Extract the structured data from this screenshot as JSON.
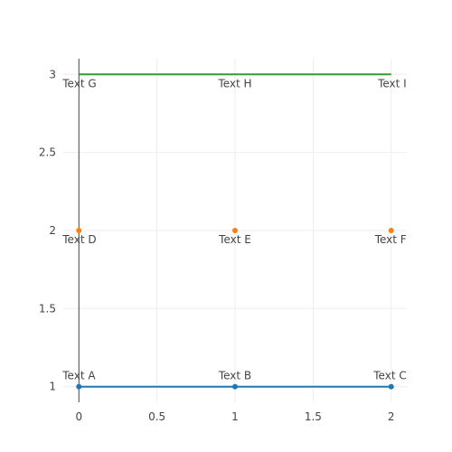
{
  "chart_data": {
    "type": "scatter",
    "xlim": [
      -0.1,
      2.1
    ],
    "ylim": [
      0.9,
      3.1
    ],
    "x_ticks": [
      0,
      0.5,
      1,
      1.5,
      2
    ],
    "y_ticks": [
      1,
      1.5,
      2,
      2.5,
      3
    ],
    "x_tick_labels": [
      "0",
      "0.5",
      "1",
      "1.5",
      "2"
    ],
    "y_tick_labels": [
      "1",
      "1.5",
      "2",
      "2.5",
      "3"
    ],
    "grid": true,
    "series": [
      {
        "mode": "lines+markers+text",
        "color": "#1f77b4",
        "text_position": "top",
        "x": [
          0,
          1,
          2
        ],
        "y": [
          1,
          1,
          1
        ],
        "labels": [
          "Text A",
          "Text B",
          "Text C"
        ]
      },
      {
        "mode": "markers+text",
        "color": "#ff7f0e",
        "text_position": "bottom",
        "x": [
          0,
          1,
          2
        ],
        "y": [
          2,
          2,
          2
        ],
        "labels": [
          "Text D",
          "Text E",
          "Text F"
        ]
      },
      {
        "mode": "lines+text",
        "color": "#2ca02c",
        "text_position": "bottom",
        "x": [
          0,
          1,
          2
        ],
        "y": [
          3,
          3,
          3
        ],
        "labels": [
          "Text G",
          "Text H",
          "Text I"
        ]
      }
    ]
  }
}
